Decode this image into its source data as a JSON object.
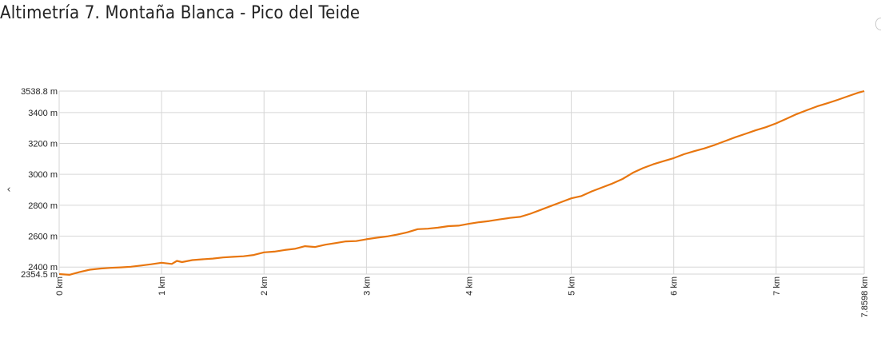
{
  "page": {
    "title": "Altimetría 7. Montaña Blanca - Pico del Teide"
  },
  "nav": {
    "prev_icon": "chevron-left-icon",
    "prev_glyph": "‹"
  },
  "chart_data": {
    "type": "line",
    "title": "Altimetría 7. Montaña Blanca - Pico del Teide",
    "xlabel": "",
    "ylabel": "",
    "xlim": [
      0,
      7.8598
    ],
    "ylim": [
      2354.5,
      3538.8
    ],
    "x_ticks": [
      {
        "value": 0,
        "label": "0 km"
      },
      {
        "value": 1,
        "label": "1 km"
      },
      {
        "value": 2,
        "label": "2 km"
      },
      {
        "value": 3,
        "label": "3 km"
      },
      {
        "value": 4,
        "label": "4 km"
      },
      {
        "value": 5,
        "label": "5 km"
      },
      {
        "value": 6,
        "label": "6 km"
      },
      {
        "value": 7,
        "label": "7 km"
      },
      {
        "value": 7.8598,
        "label": "7.8598 km"
      }
    ],
    "y_ticks": [
      {
        "value": 2354.5,
        "label": "2354.5 m"
      },
      {
        "value": 2400,
        "label": "2400 m"
      },
      {
        "value": 2600,
        "label": "2600 m"
      },
      {
        "value": 2800,
        "label": "2800 m"
      },
      {
        "value": 3000,
        "label": "3000 m"
      },
      {
        "value": 3200,
        "label": "3200 m"
      },
      {
        "value": 3400,
        "label": "3400 m"
      },
      {
        "value": 3538.8,
        "label": "3538.8 m"
      }
    ],
    "grid": true,
    "color": "#e8760f",
    "series": [
      {
        "x": [
          0,
          0.1,
          0.2,
          0.3,
          0.4,
          0.5,
          0.6,
          0.7,
          0.8,
          0.9,
          1.0,
          1.1,
          1.15,
          1.2,
          1.3,
          1.4,
          1.5,
          1.6,
          1.7,
          1.8,
          1.9,
          2.0,
          2.1,
          2.2,
          2.3,
          2.4,
          2.5,
          2.6,
          2.7,
          2.8,
          2.9,
          3.0,
          3.1,
          3.2,
          3.3,
          3.4,
          3.5,
          3.6,
          3.7,
          3.8,
          3.9,
          4.0,
          4.1,
          4.2,
          4.3,
          4.4,
          4.5,
          4.6,
          4.7,
          4.8,
          4.9,
          5.0,
          5.1,
          5.2,
          5.3,
          5.4,
          5.5,
          5.6,
          5.7,
          5.8,
          5.9,
          6.0,
          6.1,
          6.2,
          6.3,
          6.4,
          6.5,
          6.6,
          6.7,
          6.8,
          6.9,
          7.0,
          7.1,
          7.2,
          7.3,
          7.4,
          7.5,
          7.6,
          7.7,
          7.8,
          7.8598
        ],
        "values": [
          2354.5,
          2350,
          2368,
          2383,
          2390,
          2395,
          2398,
          2402,
          2410,
          2418,
          2428,
          2420,
          2440,
          2432,
          2445,
          2450,
          2455,
          2462,
          2466,
          2470,
          2478,
          2495,
          2500,
          2510,
          2518,
          2535,
          2530,
          2545,
          2555,
          2566,
          2568,
          2580,
          2590,
          2598,
          2610,
          2625,
          2645,
          2648,
          2655,
          2665,
          2668,
          2680,
          2690,
          2698,
          2708,
          2718,
          2725,
          2745,
          2770,
          2795,
          2820,
          2845,
          2860,
          2890,
          2915,
          2940,
          2970,
          3010,
          3040,
          3065,
          3085,
          3105,
          3130,
          3150,
          3168,
          3190,
          3215,
          3240,
          3262,
          3285,
          3305,
          3330,
          3360,
          3390,
          3415,
          3440,
          3460,
          3482,
          3505,
          3528,
          3538.8
        ]
      }
    ]
  }
}
